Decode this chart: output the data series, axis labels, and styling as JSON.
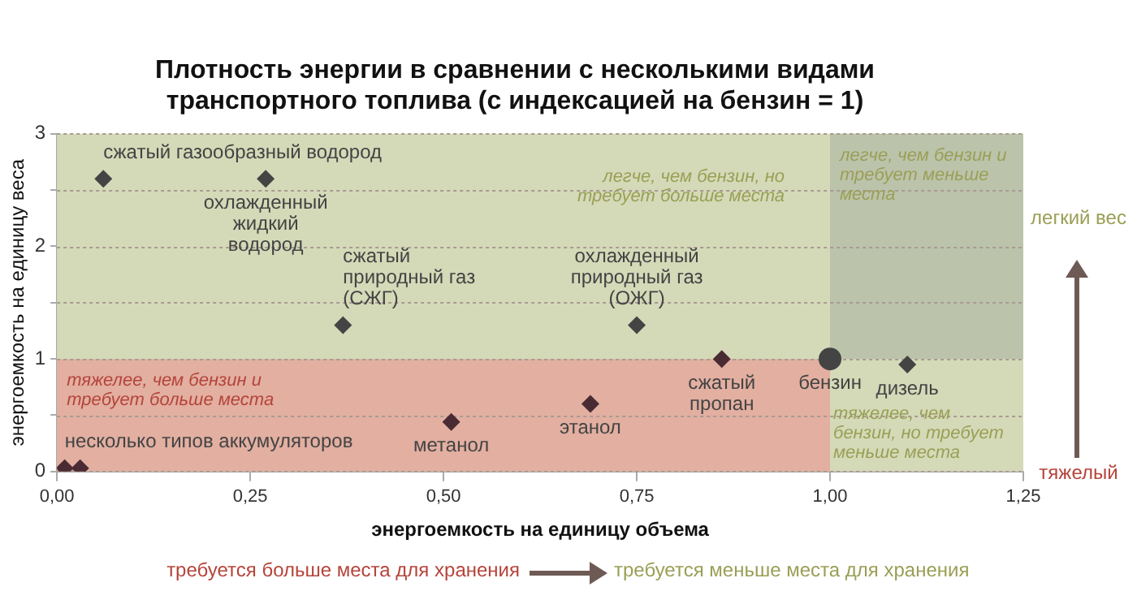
{
  "chart_data": {
    "type": "scatter",
    "title": "Плотность энергии в сравнении с несколькими видами транспортного топлива (с индексацией на бензин = 1)",
    "xlabel": "энергоемкость на единицу объема",
    "ylabel": "энергоемкость на единицу веса",
    "xlim": [
      0,
      1.25
    ],
    "ylim": [
      0,
      3
    ],
    "xticks": [
      {
        "value": 0,
        "label": "0,00"
      },
      {
        "value": 0.25,
        "label": "0,25"
      },
      {
        "value": 0.5,
        "label": "0,50"
      },
      {
        "value": 0.75,
        "label": "0,75"
      },
      {
        "value": 1,
        "label": "1,00"
      },
      {
        "value": 1.25,
        "label": "1,25"
      }
    ],
    "yticks": [
      0,
      {
        "value": 0.5,
        "label": null
      },
      1,
      {
        "value": 1.5,
        "label": null
      },
      2,
      {
        "value": 2.5,
        "label": null
      },
      3
    ],
    "grid": "y",
    "legend": false,
    "marker": "diamond",
    "series": [
      {
        "name": "сжатый газообразный водород",
        "color": "#444444",
        "x": [
          0.06
        ],
        "values": [
          2.6
        ]
      },
      {
        "name": "охлажденный жидкий водород",
        "color": "#444444",
        "x": [
          0.27
        ],
        "values": [
          2.6
        ]
      },
      {
        "name": "сжатый природный газ (СЖГ)",
        "color": "#444444",
        "x": [
          0.37
        ],
        "values": [
          1.3
        ]
      },
      {
        "name": "охлажденный природный газ (ОЖГ)",
        "color": "#444444",
        "x": [
          0.75
        ],
        "values": [
          1.3
        ]
      },
      {
        "name": "бензин",
        "color": "#444444",
        "x": [
          1
        ],
        "values": [
          1
        ],
        "marker": "circle"
      },
      {
        "name": "дизель",
        "color": "#444444",
        "x": [
          1.1
        ],
        "values": [
          0.95
        ]
      },
      {
        "name": "сжатый пропан",
        "color": "#4a2b33",
        "x": [
          0.86
        ],
        "values": [
          1
        ]
      },
      {
        "name": "этанол",
        "color": "#4a2b33",
        "x": [
          0.69
        ],
        "values": [
          0.6
        ]
      },
      {
        "name": "метанол",
        "color": "#4a2b33",
        "x": [
          0.51
        ],
        "values": [
          0.44
        ]
      },
      {
        "name": "несколько типов аккумуляторов",
        "color": "#4a2b33",
        "x": [
          0.01,
          0.03
        ],
        "values": [
          0.03,
          0.03
        ]
      }
    ],
    "bands": [
      {
        "axis": "y",
        "from": 0,
        "to": 1,
        "color": "#e2afa1",
        "label": "тяжелее, чем бензин и требует больше места"
      },
      {
        "axis": "x",
        "from": 1,
        "to": 1.25,
        "color": "#bcc3ab",
        "label": "легче, чем бензин и требует меньше места"
      }
    ],
    "annotations": [
      "легче, чем бензин, но требует больше места",
      "тяжелее, чем бензин, но требует меньше места",
      "легкий вес",
      "тяжелый",
      "требуется больше места для хранения",
      "требуется меньше места для хранения"
    ]
  }
}
